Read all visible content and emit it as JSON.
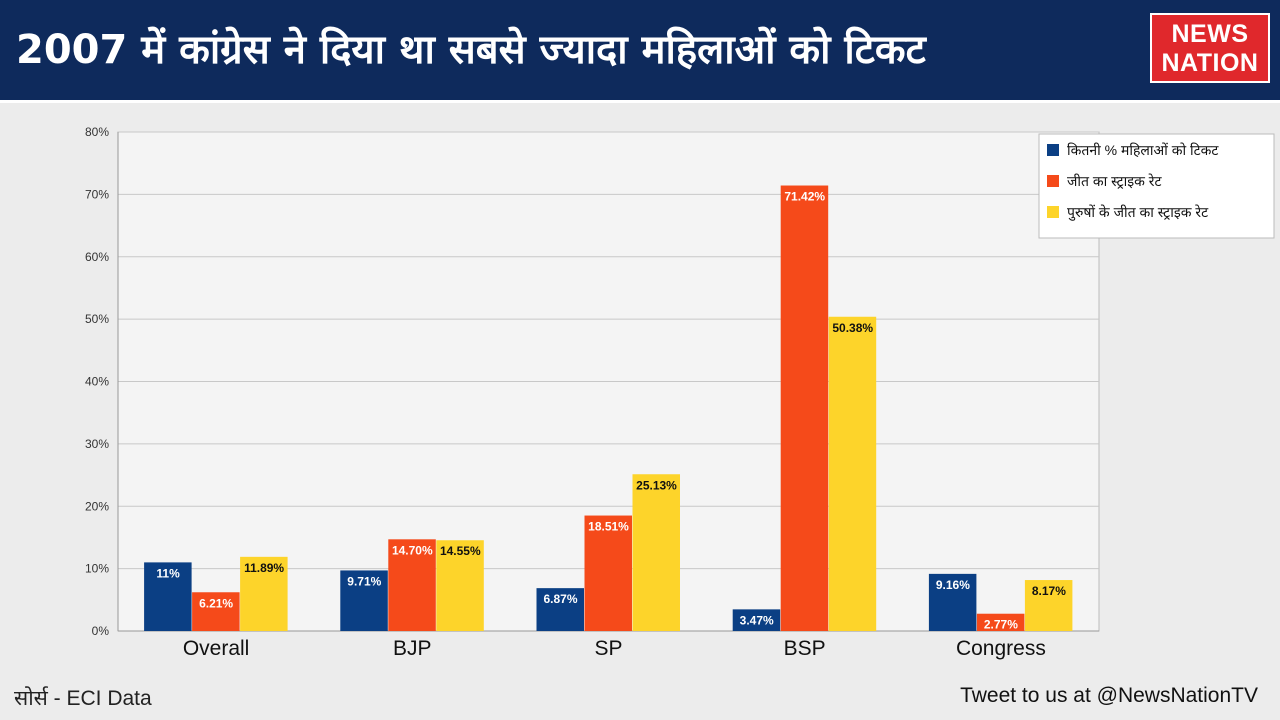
{
  "header": {
    "title": "2007 में कांग्रेस ने दिया था सबसे ज्यादा महिलाओं को टिकट",
    "logo_line1": "NEWS",
    "logo_line2": "NATION"
  },
  "chart_data": {
    "type": "bar",
    "categories": [
      "Overall",
      "BJP",
      "SP",
      "BSP",
      "Congress"
    ],
    "series": [
      {
        "name": "कितनी % महिलाओं को टिकट",
        "color": "#0b3f84",
        "values": [
          11,
          9.71,
          6.87,
          3.47,
          9.16
        ],
        "labels": [
          "11%",
          "9.71%",
          "6.87%",
          "3.47%",
          "9.16%"
        ]
      },
      {
        "name": "जीत का स्ट्राइक रेट",
        "color": "#f54a1a",
        "values": [
          6.21,
          14.7,
          18.51,
          71.42,
          2.77
        ],
        "labels": [
          "6.21%",
          "14.70%",
          "18.51%",
          "71.42%",
          "2.77%"
        ]
      },
      {
        "name": "पुरुषों के जीत का स्ट्राइक रेट",
        "color": "#fdd42a",
        "values": [
          11.89,
          14.55,
          25.13,
          50.38,
          8.17
        ],
        "labels": [
          "11.89%",
          "14.55%",
          "25.13%",
          "50.38%",
          "8.17%"
        ]
      }
    ],
    "y_ticks": [
      "0%",
      "10%",
      "20%",
      "30%",
      "40%",
      "50%",
      "60%",
      "70%",
      "80%"
    ],
    "ylim": [
      0,
      80
    ],
    "grid": true,
    "legend": "top-right",
    "title": "",
    "xlabel": "",
    "ylabel": ""
  },
  "footer": {
    "source": "सोर्स - ECI Data",
    "tweet": "Tweet to us at @NewsNationTV"
  }
}
